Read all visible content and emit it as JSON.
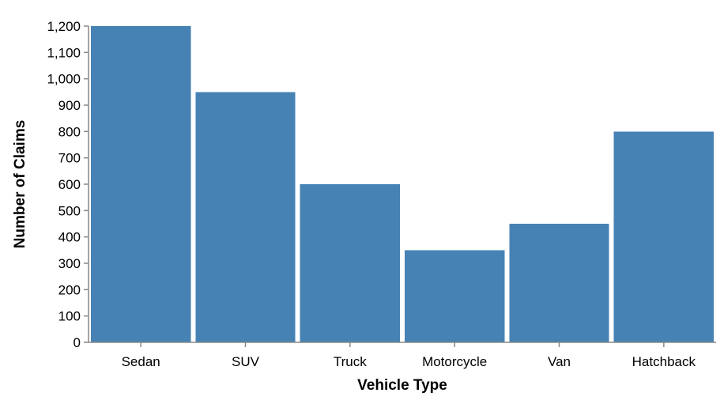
{
  "colors": {
    "bar": "#4682b4",
    "axis": "#888888",
    "text": "#000000",
    "background": "#ffffff"
  },
  "chart_data": {
    "type": "bar",
    "categories": [
      "Sedan",
      "SUV",
      "Truck",
      "Motorcycle",
      "Van",
      "Hatchback"
    ],
    "values": [
      1200,
      950,
      600,
      350,
      450,
      800
    ],
    "title": "",
    "xlabel": "Vehicle Type",
    "ylabel": "Number of Claims",
    "ylim": [
      0,
      1200
    ],
    "yticks": [
      0,
      100,
      200,
      300,
      400,
      500,
      600,
      700,
      800,
      900,
      1000,
      1100,
      1200
    ],
    "ytick_labels": [
      "0",
      "100",
      "200",
      "300",
      "400",
      "500",
      "600",
      "700",
      "800",
      "900",
      "1,000",
      "1,100",
      "1,200"
    ],
    "grid": false,
    "legend": "none"
  }
}
